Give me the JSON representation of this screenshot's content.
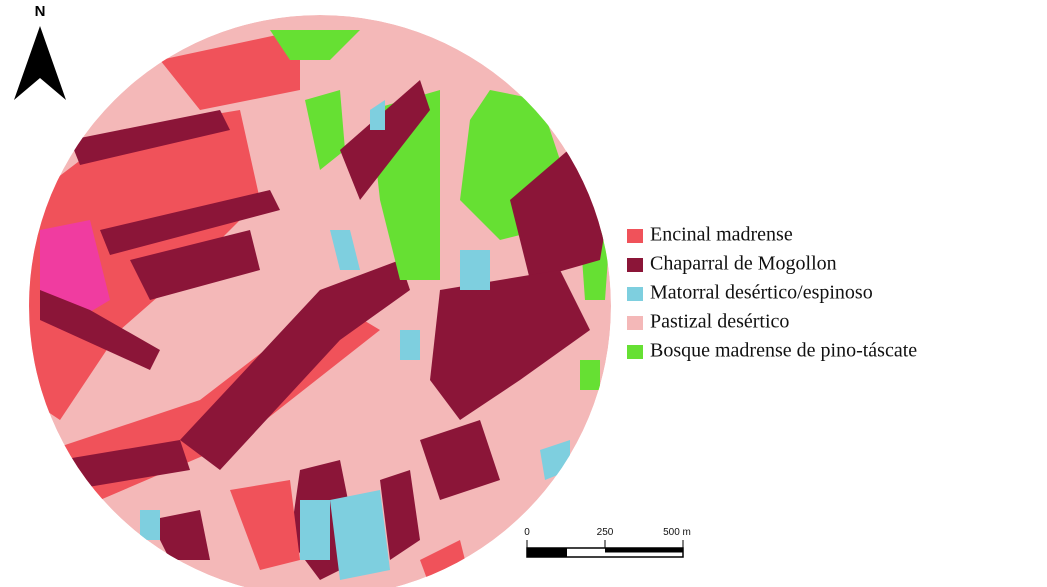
{
  "north_arrow": {
    "label": "N"
  },
  "legend": {
    "items": [
      {
        "name": "Encinal madrense",
        "color": "#f0525a"
      },
      {
        "name": "Chaparral de Mogollon",
        "color": "#8b1538"
      },
      {
        "name": "Matorral desértico/espinoso",
        "color": "#7ecfdf"
      },
      {
        "name": "Pastizal desértico",
        "color": "#f4b8b8"
      },
      {
        "name": "Bosque madrense de pino-táscate",
        "color": "#66e033"
      }
    ]
  },
  "scale_bar": {
    "labels": [
      "0",
      "250",
      "500 m"
    ]
  }
}
